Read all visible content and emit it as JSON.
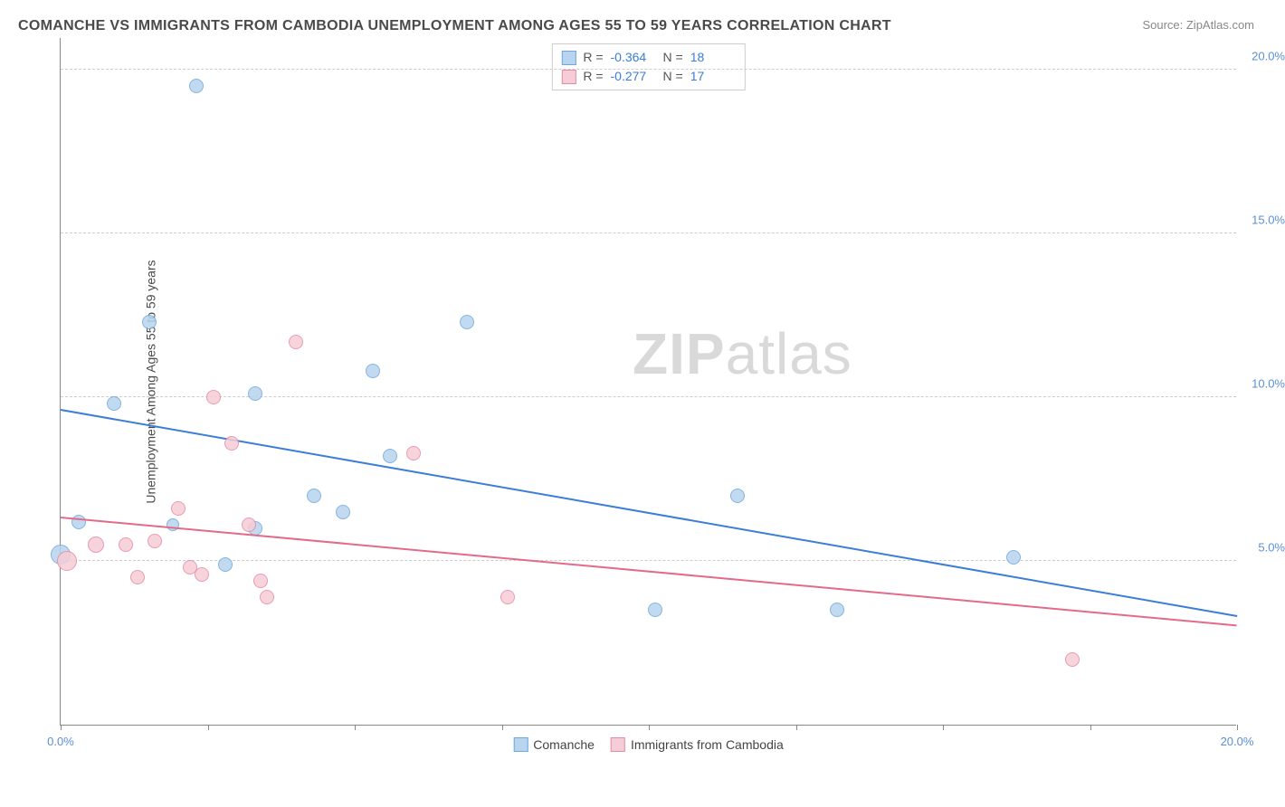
{
  "title": "COMANCHE VS IMMIGRANTS FROM CAMBODIA UNEMPLOYMENT AMONG AGES 55 TO 59 YEARS CORRELATION CHART",
  "source": "Source: ZipAtlas.com",
  "ylabel": "Unemployment Among Ages 55 to 59 years",
  "watermark_zip": "ZIP",
  "watermark_atlas": "atlas",
  "chart": {
    "type": "scatter",
    "xlim": [
      0,
      20
    ],
    "ylim": [
      0,
      21
    ],
    "yticks": [
      {
        "v": 5,
        "label": "5.0%"
      },
      {
        "v": 10,
        "label": "10.0%"
      },
      {
        "v": 15,
        "label": "15.0%"
      },
      {
        "v": 20,
        "label": "20.0%"
      }
    ],
    "xticks_minor": [
      0,
      2.5,
      5,
      7.5,
      10,
      12.5,
      15,
      17.5,
      20
    ],
    "xticks_labeled": [
      {
        "v": 0,
        "label": "0.0%"
      },
      {
        "v": 20,
        "label": "20.0%"
      }
    ],
    "background_color": "#ffffff",
    "grid_color": "#cccccc",
    "series": [
      {
        "name": "Comanche",
        "fill": "#b8d4ee",
        "stroke": "#6fa8dc",
        "r_label": "R =",
        "r": "-0.364",
        "n_label": "N =",
        "n": "18",
        "trend": {
          "y_at_x0": 9.6,
          "y_at_x20": 3.3,
          "color": "#3b7dd8"
        },
        "points": [
          {
            "x": 2.3,
            "y": 19.5,
            "r": 8
          },
          {
            "x": 1.5,
            "y": 12.3,
            "r": 8
          },
          {
            "x": 6.9,
            "y": 12.3,
            "r": 8
          },
          {
            "x": 5.3,
            "y": 10.8,
            "r": 8
          },
          {
            "x": 3.3,
            "y": 10.1,
            "r": 8
          },
          {
            "x": 0.9,
            "y": 9.8,
            "r": 8
          },
          {
            "x": 5.6,
            "y": 8.2,
            "r": 8
          },
          {
            "x": 4.3,
            "y": 7.0,
            "r": 8
          },
          {
            "x": 11.5,
            "y": 7.0,
            "r": 8
          },
          {
            "x": 4.8,
            "y": 6.5,
            "r": 8
          },
          {
            "x": 0.3,
            "y": 6.2,
            "r": 8
          },
          {
            "x": 1.9,
            "y": 6.1,
            "r": 7
          },
          {
            "x": 3.3,
            "y": 6.0,
            "r": 8
          },
          {
            "x": 16.2,
            "y": 5.1,
            "r": 8
          },
          {
            "x": 2.8,
            "y": 4.9,
            "r": 8
          },
          {
            "x": 0.0,
            "y": 5.2,
            "r": 11
          },
          {
            "x": 10.1,
            "y": 3.5,
            "r": 8
          },
          {
            "x": 13.2,
            "y": 3.5,
            "r": 8
          }
        ]
      },
      {
        "name": "Immigrants from Cambodia",
        "fill": "#f6cdd6",
        "stroke": "#e68aa2",
        "r_label": "R =",
        "r": "-0.277",
        "n_label": "N =",
        "n": "17",
        "trend": {
          "y_at_x0": 6.3,
          "y_at_x20": 3.0,
          "color": "#e26b8a"
        },
        "points": [
          {
            "x": 4.0,
            "y": 11.7,
            "r": 8
          },
          {
            "x": 2.6,
            "y": 10.0,
            "r": 8
          },
          {
            "x": 2.9,
            "y": 8.6,
            "r": 8
          },
          {
            "x": 6.0,
            "y": 8.3,
            "r": 8
          },
          {
            "x": 2.0,
            "y": 6.6,
            "r": 8
          },
          {
            "x": 3.2,
            "y": 6.1,
            "r": 8
          },
          {
            "x": 0.6,
            "y": 5.5,
            "r": 9
          },
          {
            "x": 1.1,
            "y": 5.5,
            "r": 8
          },
          {
            "x": 1.6,
            "y": 5.6,
            "r": 8
          },
          {
            "x": 0.1,
            "y": 5.0,
            "r": 11
          },
          {
            "x": 1.3,
            "y": 4.5,
            "r": 8
          },
          {
            "x": 2.4,
            "y": 4.6,
            "r": 8
          },
          {
            "x": 2.2,
            "y": 4.8,
            "r": 8
          },
          {
            "x": 3.4,
            "y": 4.4,
            "r": 8
          },
          {
            "x": 3.5,
            "y": 3.9,
            "r": 8
          },
          {
            "x": 7.6,
            "y": 3.9,
            "r": 8
          },
          {
            "x": 17.2,
            "y": 2.0,
            "r": 8
          }
        ]
      }
    ]
  }
}
